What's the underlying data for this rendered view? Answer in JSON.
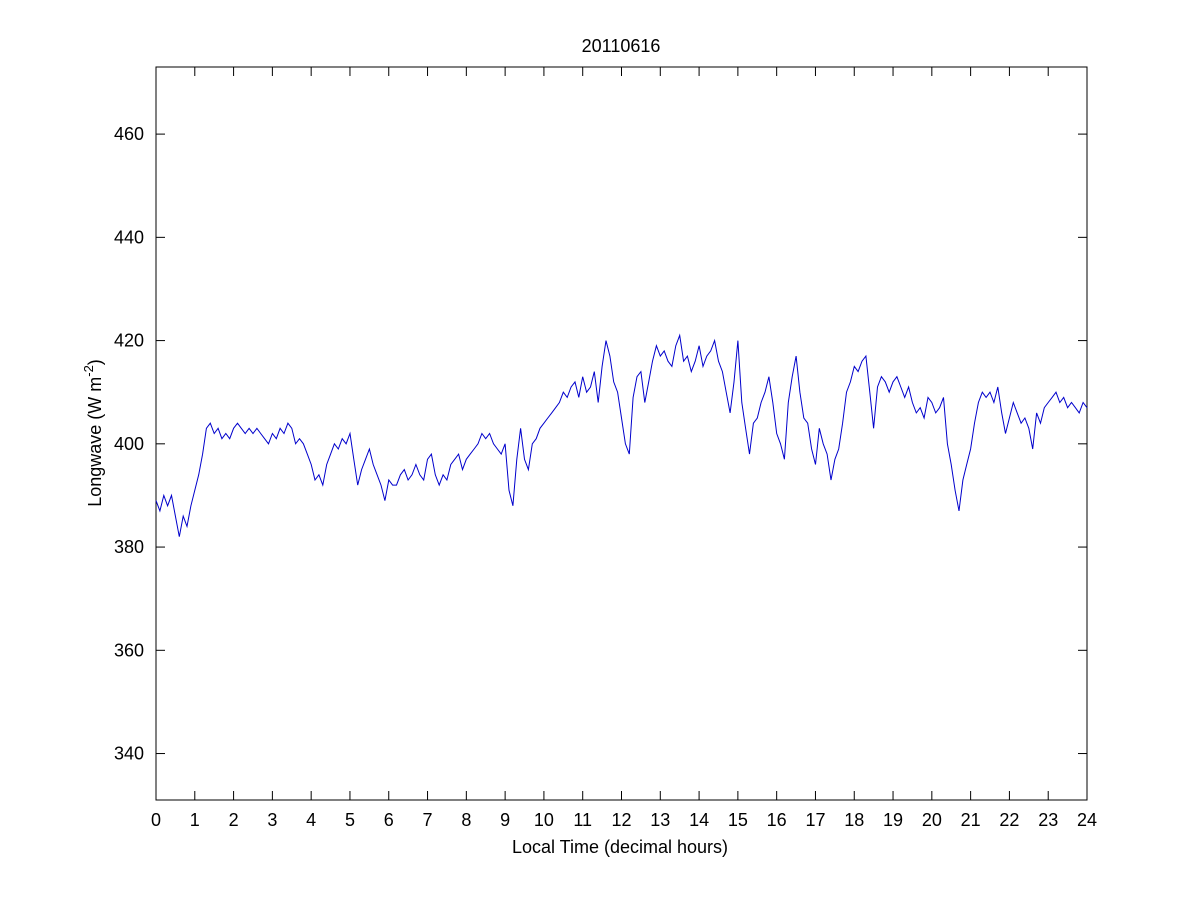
{
  "chart_data": {
    "type": "line",
    "title": "20110616",
    "xlabel": "Local Time (decimal hours)",
    "ylabel_main": "Longwave (W m",
    "ylabel_sup": "-2",
    "ylabel_close": ")",
    "xlim": [
      0,
      24
    ],
    "ylim": [
      331,
      473
    ],
    "xticks": [
      0,
      1,
      2,
      3,
      4,
      5,
      6,
      7,
      8,
      9,
      10,
      11,
      12,
      13,
      14,
      15,
      16,
      17,
      18,
      19,
      20,
      21,
      22,
      23,
      24
    ],
    "yticks": [
      340,
      360,
      380,
      400,
      420,
      440,
      460
    ],
    "grid": false,
    "line_color": "#0000cc",
    "series": [
      {
        "x": [
          0.0,
          0.1,
          0.2,
          0.3,
          0.4,
          0.5,
          0.6,
          0.7,
          0.8,
          0.9,
          1.0,
          1.1,
          1.2,
          1.3,
          1.4,
          1.5,
          1.6,
          1.7,
          1.8,
          1.9,
          2.0,
          2.1,
          2.2,
          2.3,
          2.4,
          2.5,
          2.6,
          2.7,
          2.8,
          2.9,
          3.0,
          3.1,
          3.2,
          3.3,
          3.4,
          3.5,
          3.6,
          3.7,
          3.8,
          3.9,
          4.0,
          4.1,
          4.2,
          4.3,
          4.4,
          4.5,
          4.6,
          4.7,
          4.8,
          4.9,
          5.0,
          5.1,
          5.2,
          5.3,
          5.4,
          5.5,
          5.6,
          5.7,
          5.8,
          5.9,
          6.0,
          6.1,
          6.2,
          6.3,
          6.4,
          6.5,
          6.6,
          6.7,
          6.8,
          6.9,
          7.0,
          7.1,
          7.2,
          7.3,
          7.4,
          7.5,
          7.6,
          7.7,
          7.8,
          7.9,
          8.0,
          8.1,
          8.2,
          8.3,
          8.4,
          8.5,
          8.6,
          8.7,
          8.8,
          8.9,
          9.0,
          9.1,
          9.2,
          9.3,
          9.4,
          9.5,
          9.6,
          9.7,
          9.8,
          9.9,
          10.0,
          10.1,
          10.2,
          10.3,
          10.4,
          10.5,
          10.6,
          10.7,
          10.8,
          10.9,
          11.0,
          11.1,
          11.2,
          11.3,
          11.4,
          11.5,
          11.6,
          11.7,
          11.8,
          11.9,
          12.0,
          12.1,
          12.2,
          12.3,
          12.4,
          12.5,
          12.6,
          12.7,
          12.8,
          12.9,
          13.0,
          13.1,
          13.2,
          13.3,
          13.4,
          13.5,
          13.6,
          13.7,
          13.8,
          13.9,
          14.0,
          14.1,
          14.2,
          14.3,
          14.4,
          14.5,
          14.6,
          14.7,
          14.8,
          14.9,
          15.0,
          15.1,
          15.2,
          15.3,
          15.4,
          15.5,
          15.6,
          15.7,
          15.8,
          15.9,
          16.0,
          16.1,
          16.2,
          16.3,
          16.4,
          16.5,
          16.6,
          16.7,
          16.8,
          16.9,
          17.0,
          17.1,
          17.2,
          17.3,
          17.4,
          17.5,
          17.6,
          17.7,
          17.8,
          17.9,
          18.0,
          18.1,
          18.2,
          18.3,
          18.4,
          18.5,
          18.6,
          18.7,
          18.8,
          18.9,
          19.0,
          19.1,
          19.2,
          19.3,
          19.4,
          19.5,
          19.6,
          19.7,
          19.8,
          19.9,
          20.0,
          20.1,
          20.2,
          20.3,
          20.4,
          20.5,
          20.6,
          20.7,
          20.8,
          20.9,
          21.0,
          21.1,
          21.2,
          21.3,
          21.4,
          21.5,
          21.6,
          21.7,
          21.8,
          21.9,
          22.0,
          22.1,
          22.2,
          22.3,
          22.4,
          22.5,
          22.6,
          22.7,
          22.8,
          22.9,
          23.0,
          23.1,
          23.2,
          23.3,
          23.4,
          23.5,
          23.6,
          23.7,
          23.8,
          23.9,
          24.0
        ],
        "values": [
          389,
          387,
          390,
          388,
          390,
          386,
          382,
          386,
          384,
          388,
          391,
          394,
          398,
          403,
          404,
          402,
          403,
          401,
          402,
          401,
          403,
          404,
          403,
          402,
          403,
          402,
          403,
          402,
          401,
          400,
          402,
          401,
          403,
          402,
          404,
          403,
          400,
          401,
          400,
          398,
          396,
          393,
          394,
          392,
          396,
          398,
          400,
          399,
          401,
          400,
          402,
          397,
          392,
          395,
          397,
          399,
          396,
          394,
          392,
          389,
          393,
          392,
          392,
          394,
          395,
          393,
          394,
          396,
          394,
          393,
          397,
          398,
          394,
          392,
          394,
          393,
          396,
          397,
          398,
          395,
          397,
          398,
          399,
          400,
          402,
          401,
          402,
          400,
          399,
          398,
          400,
          391,
          388,
          397,
          403,
          397,
          395,
          400,
          401,
          403,
          404,
          405,
          406,
          407,
          408,
          410,
          409,
          411,
          412,
          409,
          413,
          410,
          411,
          414,
          408,
          415,
          420,
          417,
          412,
          410,
          405,
          400,
          398,
          409,
          413,
          414,
          408,
          412,
          416,
          419,
          417,
          418,
          416,
          415,
          419,
          421,
          416,
          417,
          414,
          416,
          419,
          415,
          417,
          418,
          420,
          416,
          414,
          410,
          406,
          412,
          420,
          408,
          403,
          398,
          404,
          405,
          408,
          410,
          413,
          408,
          402,
          400,
          397,
          408,
          413,
          417,
          410,
          405,
          404,
          399,
          396,
          403,
          400,
          398,
          393,
          397,
          399,
          404,
          410,
          412,
          415,
          414,
          416,
          417,
          410,
          403,
          411,
          413,
          412,
          410,
          412,
          413,
          411,
          409,
          411,
          408,
          406,
          407,
          405,
          409,
          408,
          406,
          407,
          409,
          400,
          396,
          391,
          387,
          393,
          396,
          399,
          404,
          408,
          410,
          409,
          410,
          408,
          411,
          406,
          402,
          405,
          408,
          406,
          404,
          405,
          403,
          399,
          406,
          404,
          407,
          408,
          409,
          410,
          408,
          409,
          407,
          408,
          407,
          406,
          408,
          407
        ]
      }
    ]
  }
}
